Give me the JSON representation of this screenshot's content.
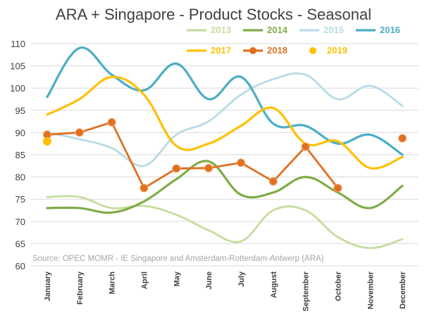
{
  "chart_data": {
    "type": "line",
    "title": "ARA + Singapore - Product Stocks - Seasonal",
    "source": "Source: OPEC MOMR - IE Singapore and Amsterdam-Rotterdam-Antwerp (ARA)",
    "categories": [
      "January",
      "February",
      "March",
      "April",
      "May",
      "June",
      "July",
      "August",
      "September",
      "October",
      "November",
      "December"
    ],
    "ylim": [
      60,
      110
    ],
    "yticks": [
      60,
      65,
      70,
      75,
      80,
      85,
      90,
      95,
      100,
      105,
      110
    ],
    "grid": true,
    "legend_position": "top-right",
    "series": [
      {
        "name": "2013",
        "color": "#c5dd9d",
        "smooth": true,
        "marker": "none",
        "values": [
          75.5,
          75.5,
          73,
          73.5,
          71.5,
          68,
          65.5,
          72.5,
          72.5,
          66.5,
          64,
          66
        ]
      },
      {
        "name": "2014",
        "color": "#7fac46",
        "smooth": true,
        "marker": "none",
        "values": [
          73,
          73,
          72,
          74.5,
          79.5,
          83.5,
          76,
          76.5,
          80,
          76.5,
          73,
          78
        ]
      },
      {
        "name": "2015",
        "color": "#b8dbe6",
        "smooth": true,
        "marker": "none",
        "values": [
          90,
          88.5,
          86.5,
          82.5,
          89.5,
          92.5,
          98.5,
          102,
          103,
          97.5,
          100.5,
          96
        ]
      },
      {
        "name": "2016",
        "color": "#4badc6",
        "smooth": true,
        "marker": "none",
        "values": [
          98,
          109,
          103,
          99.5,
          105.5,
          97.5,
          102.5,
          92,
          91.5,
          87.5,
          89.5,
          85
        ]
      },
      {
        "name": "2017",
        "color": "#ffc000",
        "smooth": true,
        "marker": "none",
        "values": [
          94,
          97.5,
          102.5,
          98.5,
          87,
          87.5,
          91.5,
          95.5,
          87.5,
          88,
          82,
          84.5
        ]
      },
      {
        "name": "2018",
        "color": "#e07020",
        "smooth": false,
        "marker": "circle",
        "values": [
          89.5,
          90,
          92.3,
          77.5,
          81.9,
          82,
          83.2,
          79,
          86.8,
          77.5,
          null,
          88.7
        ]
      },
      {
        "name": "2019",
        "color": "#ffc000",
        "smooth": false,
        "marker": "circle-only",
        "values": [
          88,
          null,
          null,
          null,
          null,
          null,
          null,
          null,
          null,
          null,
          null,
          null
        ]
      }
    ]
  }
}
